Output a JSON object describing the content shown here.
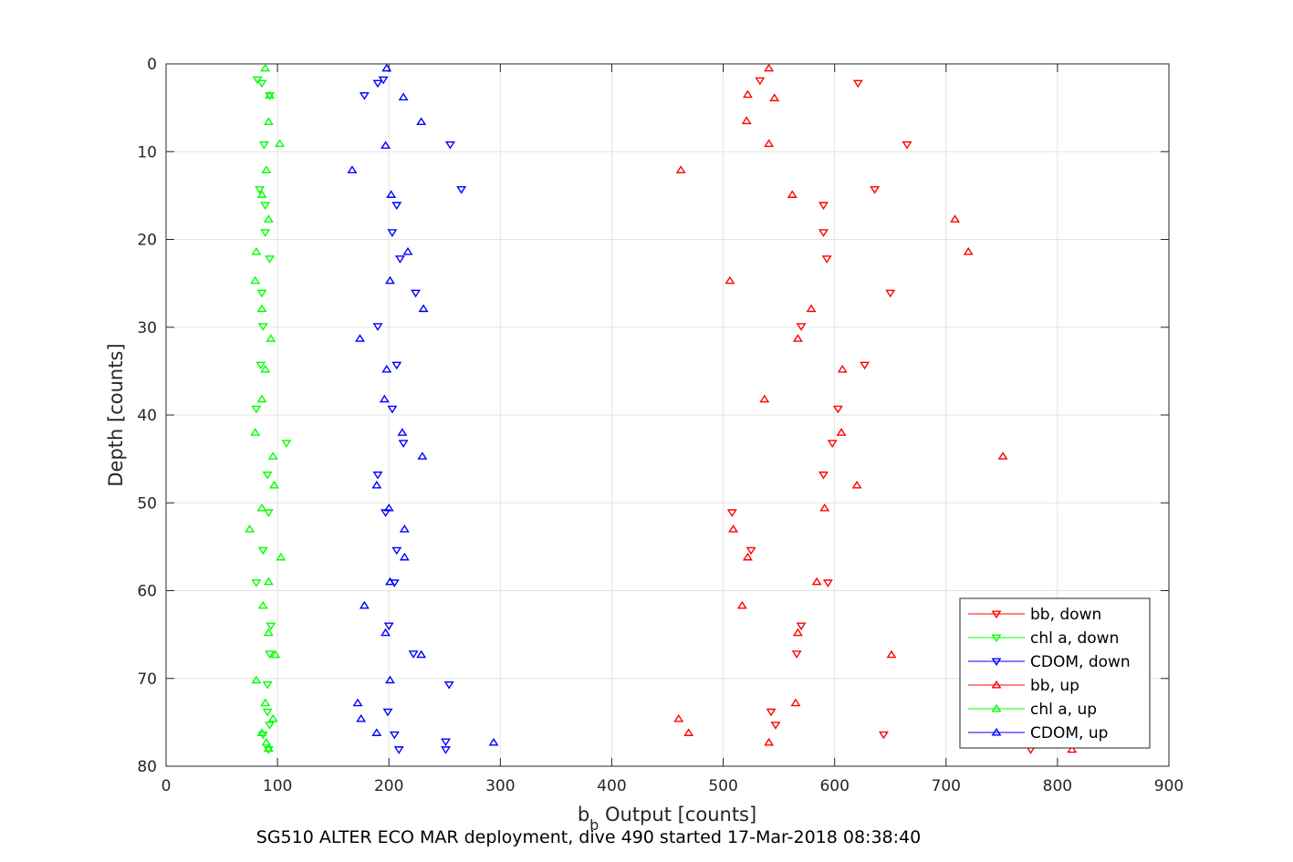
{
  "chart_data": {
    "type": "scatter",
    "xlabel_main": "b",
    "xlabel_sub": "b",
    "xlabel_rest": " Output [counts]",
    "ylabel": "Depth [counts]",
    "caption": "SG510 ALTER ECO MAR deployment, dive 490 started 17-Mar-2018 08:38:40",
    "xlim": [
      0,
      900
    ],
    "ylim": [
      0,
      80
    ],
    "y_reversed": true,
    "grid": true,
    "legend_position": "bottom-right",
    "x_ticks": [
      "0",
      "100",
      "200",
      "300",
      "400",
      "500",
      "600",
      "700",
      "800",
      "900"
    ],
    "y_ticks": [
      "0",
      "10",
      "20",
      "30",
      "40",
      "50",
      "60",
      "70",
      "80"
    ],
    "series": [
      {
        "name": "bb, down",
        "color": "#ff0000",
        "marker": "triangle-down",
        "points": [
          [
            533,
            1.9
          ],
          [
            621,
            2.2
          ],
          [
            665,
            9.2
          ],
          [
            636,
            14.3
          ],
          [
            590,
            16.1
          ],
          [
            590,
            19.2
          ],
          [
            593,
            22.2
          ],
          [
            650,
            26.1
          ],
          [
            570,
            29.9
          ],
          [
            627,
            34.3
          ],
          [
            603,
            39.3
          ],
          [
            598,
            43.2
          ],
          [
            590,
            46.8
          ],
          [
            508,
            51.1
          ],
          [
            525,
            55.4
          ],
          [
            594,
            59.1
          ],
          [
            570,
            64
          ],
          [
            566,
            67.2
          ],
          [
            543,
            73.8
          ],
          [
            547,
            75.3
          ],
          [
            644,
            76.4
          ],
          [
            776,
            78.1
          ]
        ]
      },
      {
        "name": "chl a, down",
        "color": "#00ff00",
        "marker": "triangle-down",
        "points": [
          [
            82,
            1.8
          ],
          [
            86,
            2.2
          ],
          [
            93,
            3.6
          ],
          [
            88,
            9.2
          ],
          [
            84,
            14.3
          ],
          [
            89,
            16.1
          ],
          [
            89,
            19.2
          ],
          [
            93,
            22.2
          ],
          [
            86,
            26.1
          ],
          [
            87,
            29.9
          ],
          [
            85,
            34.3
          ],
          [
            81,
            39.3
          ],
          [
            108,
            43.2
          ],
          [
            91,
            46.8
          ],
          [
            92,
            51.1
          ],
          [
            87,
            55.4
          ],
          [
            81,
            59.1
          ],
          [
            94,
            64
          ],
          [
            93,
            67.2
          ],
          [
            91,
            70.7
          ],
          [
            91,
            73.8
          ],
          [
            93,
            75.3
          ],
          [
            87,
            76.4
          ],
          [
            92,
            78.1
          ]
        ]
      },
      {
        "name": "CDOM, down",
        "color": "#0000ff",
        "marker": "triangle-down",
        "points": [
          [
            190,
            2.2
          ],
          [
            195,
            1.8
          ],
          [
            178,
            3.6
          ],
          [
            255,
            9.2
          ],
          [
            265,
            14.3
          ],
          [
            207,
            16.1
          ],
          [
            203,
            19.2
          ],
          [
            210,
            22.2
          ],
          [
            224,
            26.1
          ],
          [
            190,
            29.9
          ],
          [
            207,
            34.3
          ],
          [
            203,
            39.3
          ],
          [
            213,
            43.2
          ],
          [
            190,
            46.8
          ],
          [
            197,
            51.1
          ],
          [
            207,
            55.4
          ],
          [
            205,
            59.1
          ],
          [
            200,
            64
          ],
          [
            222,
            67.2
          ],
          [
            254,
            70.7
          ],
          [
            199,
            73.8
          ],
          [
            205,
            76.4
          ],
          [
            251,
            77.2
          ],
          [
            209,
            78.1
          ],
          [
            251,
            78.1
          ]
        ]
      },
      {
        "name": "bb, up",
        "color": "#ff0000",
        "marker": "triangle-up",
        "points": [
          [
            541,
            0.5
          ],
          [
            522,
            3.5
          ],
          [
            546,
            3.9
          ],
          [
            521,
            6.5
          ],
          [
            541,
            9.1
          ],
          [
            462,
            12.1
          ],
          [
            562,
            14.9
          ],
          [
            708,
            17.7
          ],
          [
            720,
            21.4
          ],
          [
            506,
            24.7
          ],
          [
            579,
            27.9
          ],
          [
            567,
            31.3
          ],
          [
            607,
            34.8
          ],
          [
            537,
            38.2
          ],
          [
            606,
            42
          ],
          [
            751,
            44.7
          ],
          [
            620,
            48
          ],
          [
            591,
            50.6
          ],
          [
            509,
            53
          ],
          [
            522,
            56.2
          ],
          [
            584,
            59
          ],
          [
            517,
            61.7
          ],
          [
            567,
            64.8
          ],
          [
            651,
            67.3
          ],
          [
            565,
            72.8
          ],
          [
            460,
            74.6
          ],
          [
            469,
            76.2
          ],
          [
            541,
            77.3
          ],
          [
            813,
            78.1
          ]
        ]
      },
      {
        "name": "chl a, up",
        "color": "#00ff00",
        "marker": "triangle-up",
        "points": [
          [
            89,
            0.5
          ],
          [
            93,
            3.6
          ],
          [
            92,
            6.6
          ],
          [
            102,
            9.1
          ],
          [
            90,
            12.1
          ],
          [
            86,
            14.9
          ],
          [
            92,
            17.7
          ],
          [
            81,
            21.4
          ],
          [
            80,
            24.7
          ],
          [
            86,
            27.9
          ],
          [
            94,
            31.3
          ],
          [
            89,
            34.8
          ],
          [
            86,
            38.2
          ],
          [
            80,
            42
          ],
          [
            96,
            44.7
          ],
          [
            97,
            48
          ],
          [
            86,
            50.6
          ],
          [
            75,
            53
          ],
          [
            103,
            56.2
          ],
          [
            92,
            59
          ],
          [
            87,
            61.7
          ],
          [
            92,
            64.8
          ],
          [
            98,
            67.3
          ],
          [
            81,
            70.2
          ],
          [
            89,
            72.8
          ],
          [
            96,
            74.6
          ],
          [
            86,
            76.2
          ],
          [
            90,
            77.3
          ],
          [
            92,
            78
          ]
        ]
      },
      {
        "name": "CDOM, up",
        "color": "#0000ff",
        "marker": "triangle-up",
        "points": [
          [
            198,
            0.5
          ],
          [
            213,
            3.8
          ],
          [
            229,
            6.6
          ],
          [
            197,
            9.3
          ],
          [
            167,
            12.1
          ],
          [
            202,
            14.9
          ],
          [
            217,
            21.4
          ],
          [
            201,
            24.7
          ],
          [
            231,
            27.9
          ],
          [
            174,
            31.3
          ],
          [
            198,
            34.8
          ],
          [
            196,
            38.2
          ],
          [
            212,
            42
          ],
          [
            230,
            44.7
          ],
          [
            189,
            48
          ],
          [
            200,
            50.6
          ],
          [
            214,
            53
          ],
          [
            214,
            56.2
          ],
          [
            201,
            59
          ],
          [
            178,
            61.7
          ],
          [
            197,
            64.8
          ],
          [
            229,
            67.3
          ],
          [
            201,
            70.2
          ],
          [
            172,
            72.8
          ],
          [
            175,
            74.6
          ],
          [
            189,
            76.2
          ],
          [
            294,
            77.3
          ]
        ]
      }
    ]
  }
}
